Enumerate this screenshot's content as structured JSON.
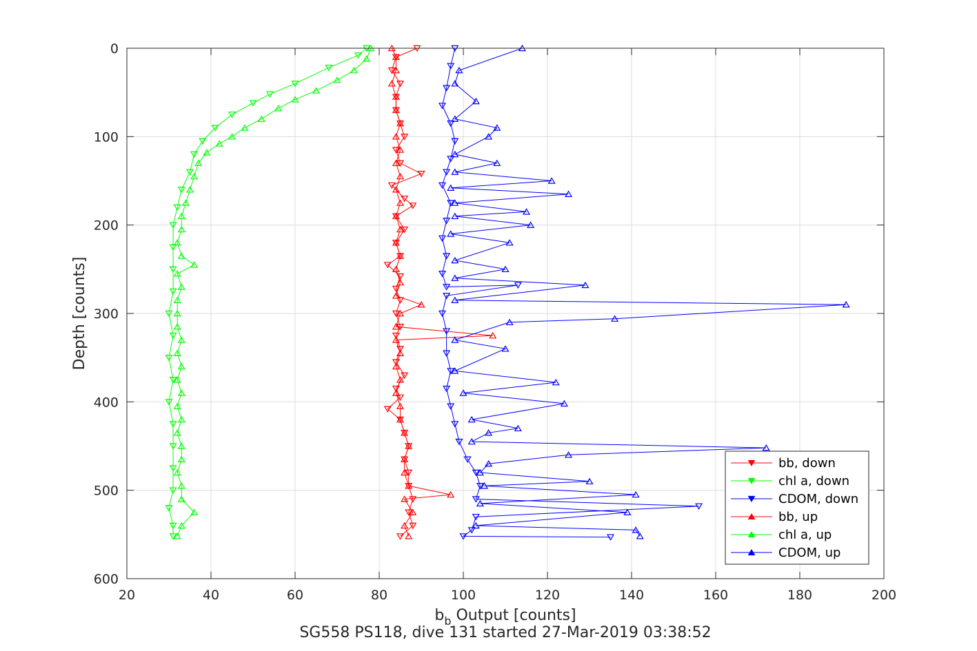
{
  "chart_data": {
    "type": "line",
    "xlabel": "b",
    "xlabel_subscript": "b",
    "xlabel_suffix": " Output [counts]",
    "ylabel": "Depth [counts]",
    "caption": "SG558 PS118, dive 131 started 27-Mar-2019 03:38:52",
    "xlim": [
      20,
      200
    ],
    "ylim": [
      0,
      600
    ],
    "y_reversed": true,
    "xticks": [
      "20",
      "40",
      "60",
      "80",
      "100",
      "120",
      "140",
      "160",
      "180",
      "200"
    ],
    "yticks": [
      "0",
      "100",
      "200",
      "300",
      "400",
      "500",
      "600"
    ],
    "grid": true,
    "legend_position": "bottom-right",
    "series": [
      {
        "name": "bb, down",
        "color": "#ff0000",
        "marker": "triangle-down",
        "points": [
          [
            89,
            0
          ],
          [
            84,
            10
          ],
          [
            83,
            25
          ],
          [
            85,
            40
          ],
          [
            84,
            55
          ],
          [
            84,
            70
          ],
          [
            85,
            85
          ],
          [
            86,
            100
          ],
          [
            84,
            115
          ],
          [
            85,
            130
          ],
          [
            90,
            142
          ],
          [
            83,
            155
          ],
          [
            86,
            170
          ],
          [
            88,
            178
          ],
          [
            84,
            190
          ],
          [
            86,
            205
          ],
          [
            84,
            220
          ],
          [
            85,
            235
          ],
          [
            82,
            245
          ],
          [
            85,
            258
          ],
          [
            84,
            272
          ],
          [
            85,
            285
          ],
          [
            84,
            300
          ],
          [
            85,
            315
          ],
          [
            84,
            325
          ],
          [
            85,
            340
          ],
          [
            84,
            355
          ],
          [
            86,
            370
          ],
          [
            84,
            385
          ],
          [
            85,
            395
          ],
          [
            82,
            408
          ],
          [
            85,
            420
          ],
          [
            86,
            435
          ],
          [
            87,
            450
          ],
          [
            86,
            465
          ],
          [
            87,
            480
          ],
          [
            87,
            495
          ],
          [
            88,
            510
          ],
          [
            87,
            525
          ],
          [
            88,
            540
          ],
          [
            85,
            552
          ]
        ]
      },
      {
        "name": "chl a, down",
        "color": "#00ff00",
        "marker": "triangle-down",
        "points": [
          [
            77,
            0
          ],
          [
            75,
            8
          ],
          [
            68,
            22
          ],
          [
            60,
            40
          ],
          [
            54,
            52
          ],
          [
            50,
            62
          ],
          [
            45,
            75
          ],
          [
            41,
            90
          ],
          [
            38,
            105
          ],
          [
            36,
            120
          ],
          [
            35,
            140
          ],
          [
            33,
            160
          ],
          [
            32,
            180
          ],
          [
            31,
            200
          ],
          [
            31,
            225
          ],
          [
            31,
            250
          ],
          [
            31,
            275
          ],
          [
            30,
            300
          ],
          [
            31,
            325
          ],
          [
            30,
            350
          ],
          [
            31,
            375
          ],
          [
            30,
            400
          ],
          [
            31,
            425
          ],
          [
            31,
            450
          ],
          [
            31,
            475
          ],
          [
            31,
            500
          ],
          [
            30,
            520
          ],
          [
            31,
            540
          ],
          [
            31,
            552
          ]
        ]
      },
      {
        "name": "CDOM, down",
        "color": "#0000ff",
        "marker": "triangle-down",
        "points": [
          [
            98,
            0
          ],
          [
            97,
            20
          ],
          [
            96,
            45
          ],
          [
            95,
            65
          ],
          [
            97,
            85
          ],
          [
            98,
            105
          ],
          [
            97,
            125
          ],
          [
            96,
            140
          ],
          [
            95,
            155
          ],
          [
            97,
            175
          ],
          [
            96,
            195
          ],
          [
            95,
            215
          ],
          [
            96,
            235
          ],
          [
            95,
            255
          ],
          [
            96,
            270
          ],
          [
            113,
            268
          ],
          [
            96,
            280
          ],
          [
            95,
            300
          ],
          [
            96,
            320
          ],
          [
            96,
            345
          ],
          [
            97,
            365
          ],
          [
            96,
            385
          ],
          [
            97,
            405
          ],
          [
            98,
            425
          ],
          [
            99,
            445
          ],
          [
            101,
            465
          ],
          [
            103,
            480
          ],
          [
            104,
            495
          ],
          [
            103,
            510
          ],
          [
            156,
            518
          ],
          [
            103,
            530
          ],
          [
            102,
            545
          ],
          [
            100,
            552
          ],
          [
            135,
            553
          ]
        ]
      },
      {
        "name": "bb, up",
        "color": "#ff0000",
        "marker": "triangle-up",
        "points": [
          [
            87,
            552
          ],
          [
            86,
            540
          ],
          [
            88,
            525
          ],
          [
            86,
            510
          ],
          [
            97,
            505
          ],
          [
            87,
            495
          ],
          [
            86,
            480
          ],
          [
            86,
            465
          ],
          [
            87,
            450
          ],
          [
            86,
            435
          ],
          [
            85,
            420
          ],
          [
            85,
            405
          ],
          [
            84,
            390
          ],
          [
            85,
            375
          ],
          [
            84,
            360
          ],
          [
            85,
            345
          ],
          [
            84,
            330
          ],
          [
            107,
            325
          ],
          [
            84,
            315
          ],
          [
            85,
            300
          ],
          [
            90,
            290
          ],
          [
            84,
            280
          ],
          [
            85,
            265
          ],
          [
            84,
            250
          ],
          [
            85,
            235
          ],
          [
            84,
            220
          ],
          [
            85,
            205
          ],
          [
            84,
            190
          ],
          [
            85,
            175
          ],
          [
            84,
            160
          ],
          [
            85,
            145
          ],
          [
            84,
            130
          ],
          [
            85,
            115
          ],
          [
            84,
            100
          ],
          [
            85,
            85
          ],
          [
            84,
            70
          ],
          [
            84,
            55
          ],
          [
            83,
            40
          ],
          [
            84,
            25
          ],
          [
            84,
            10
          ],
          [
            83,
            0
          ]
        ]
      },
      {
        "name": "chl a, up",
        "color": "#00ff00",
        "marker": "triangle-up",
        "points": [
          [
            32,
            552
          ],
          [
            33,
            540
          ],
          [
            36,
            525
          ],
          [
            33,
            510
          ],
          [
            33,
            495
          ],
          [
            32,
            480
          ],
          [
            33,
            465
          ],
          [
            33,
            450
          ],
          [
            32,
            435
          ],
          [
            33,
            420
          ],
          [
            32,
            405
          ],
          [
            33,
            390
          ],
          [
            32,
            375
          ],
          [
            33,
            360
          ],
          [
            32,
            345
          ],
          [
            33,
            330
          ],
          [
            32,
            315
          ],
          [
            32,
            300
          ],
          [
            32,
            285
          ],
          [
            33,
            270
          ],
          [
            32,
            255
          ],
          [
            36,
            245
          ],
          [
            33,
            235
          ],
          [
            32,
            220
          ],
          [
            33,
            205
          ],
          [
            33,
            190
          ],
          [
            34,
            175
          ],
          [
            35,
            160
          ],
          [
            36,
            145
          ],
          [
            37,
            130
          ],
          [
            39,
            118
          ],
          [
            42,
            108
          ],
          [
            45,
            100
          ],
          [
            48,
            90
          ],
          [
            52,
            80
          ],
          [
            56,
            68
          ],
          [
            60,
            58
          ],
          [
            65,
            48
          ],
          [
            70,
            36
          ],
          [
            74,
            25
          ],
          [
            77,
            12
          ],
          [
            78,
            0
          ]
        ]
      },
      {
        "name": "CDOM, up",
        "color": "#0000ff",
        "marker": "triangle-up",
        "points": [
          [
            142,
            552
          ],
          [
            141,
            545
          ],
          [
            103,
            540
          ],
          [
            139,
            525
          ],
          [
            104,
            515
          ],
          [
            141,
            505
          ],
          [
            105,
            495
          ],
          [
            130,
            490
          ],
          [
            104,
            480
          ],
          [
            106,
            470
          ],
          [
            125,
            460
          ],
          [
            172,
            452
          ],
          [
            102,
            445
          ],
          [
            106,
            435
          ],
          [
            113,
            430
          ],
          [
            102,
            420
          ],
          [
            124,
            402
          ],
          [
            100,
            390
          ],
          [
            122,
            378
          ],
          [
            98,
            365
          ],
          [
            110,
            340
          ],
          [
            98,
            330
          ],
          [
            111,
            310
          ],
          [
            136,
            306
          ],
          [
            191,
            290
          ],
          [
            98,
            285
          ],
          [
            129,
            268
          ],
          [
            98,
            260
          ],
          [
            110,
            250
          ],
          [
            98,
            240
          ],
          [
            111,
            220
          ],
          [
            97,
            210
          ],
          [
            116,
            200
          ],
          [
            98,
            190
          ],
          [
            115,
            185
          ],
          [
            98,
            175
          ],
          [
            125,
            165
          ],
          [
            97,
            158
          ],
          [
            121,
            150
          ],
          [
            98,
            140
          ],
          [
            108,
            130
          ],
          [
            98,
            120
          ],
          [
            106,
            100
          ],
          [
            108,
            90
          ],
          [
            98,
            80
          ],
          [
            103,
            60
          ],
          [
            98,
            40
          ],
          [
            99,
            25
          ],
          [
            114,
            0
          ]
        ]
      }
    ]
  }
}
